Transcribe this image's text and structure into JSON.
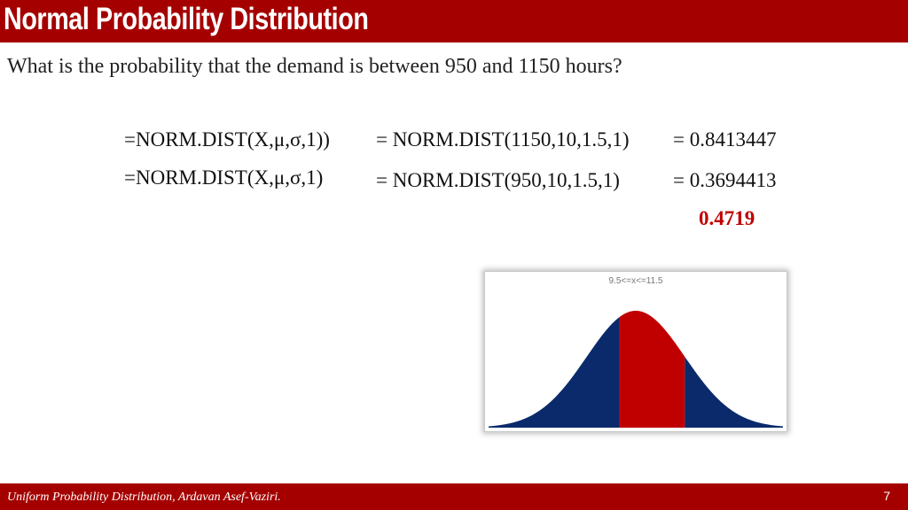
{
  "header": {
    "title": "Normal Probability Distribution"
  },
  "question": "What is the probability that the demand is between 950 and 1150 hours?",
  "formulas": [
    {
      "generic": "=NORM.DIST(X,μ,σ,1))",
      "specific": "= NORM.DIST(1150,10,1.5,1)",
      "result": "= 0.8413447"
    },
    {
      "generic": "=NORM.DIST(X,μ,σ,1)",
      "specific": "= NORM.DIST(950,10,1.5,1)",
      "result": "= 0.3694413"
    }
  ],
  "difference": "0.4719",
  "chart_data": {
    "type": "area",
    "title": "9.5<=x<=11.5",
    "distribution": "normal",
    "mean": 10,
    "sd": 1.5,
    "xlim": [
      5.5,
      14.5
    ],
    "shaded_range": [
      9.5,
      11.5
    ],
    "colors": {
      "tails": "#0a2a6b",
      "shaded": "#c00000"
    },
    "grid": false,
    "legend": "none"
  },
  "footer": {
    "text": "Uniform Probability Distribution, Ardavan Asef-Vaziri.",
    "page": "7"
  }
}
